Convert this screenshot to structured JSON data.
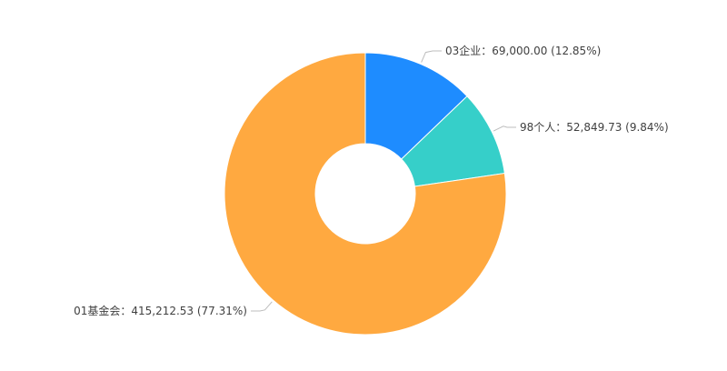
{
  "chart_data": {
    "type": "pie",
    "variant": "donut",
    "title": "",
    "legend": "none",
    "slices": [
      {
        "name": "03企业",
        "value": 69000.0,
        "value_label": "69,000.00",
        "percent": 12.85,
        "percent_label": "(12.85%)",
        "color": "#1E8CFF"
      },
      {
        "name": "98个人",
        "value": 52849.73,
        "value_label": "52,849.73",
        "percent": 9.84,
        "percent_label": "(9.84%)",
        "color": "#36CFC9"
      },
      {
        "name": "01基金会",
        "value": 415212.53,
        "value_label": "415,212.53",
        "percent": 77.31,
        "percent_label": "(77.31%)",
        "color": "#FFA940"
      }
    ],
    "labels": [
      "03企业：69,000.00 (12.85%)",
      "98个人：52,849.73 (9.84%)",
      "01基金会：415,212.53 (77.31%)"
    ]
  }
}
